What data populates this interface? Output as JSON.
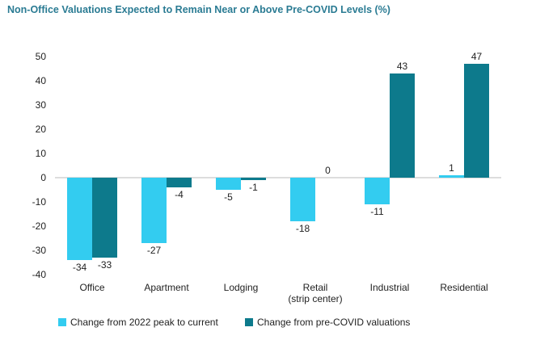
{
  "chart_data": {
    "type": "bar",
    "title": "Non-Office Valuations Expected to Remain Near or Above Pre-COVID Levels (%)",
    "categories": [
      [
        "Office"
      ],
      [
        "Apartment"
      ],
      [
        "Lodging"
      ],
      [
        "Retail",
        "(strip center)"
      ],
      [
        "Industrial"
      ],
      [
        "Residential"
      ]
    ],
    "series": [
      {
        "name": "Change from 2022 peak to current",
        "color": "#33ccf0",
        "values": [
          -34,
          -27,
          -5,
          -18,
          -11,
          1
        ]
      },
      {
        "name": "Change from pre-COVID valuations",
        "color": "#0d7a8c",
        "values": [
          -33,
          -4,
          -1,
          0,
          43,
          47
        ]
      }
    ],
    "ylim": [
      -40,
      50
    ],
    "yticks": [
      -40,
      -30,
      -20,
      -10,
      0,
      10,
      20,
      30,
      40,
      50
    ],
    "xlabel": "",
    "ylabel": "",
    "legend": "bottom",
    "grid": false
  }
}
